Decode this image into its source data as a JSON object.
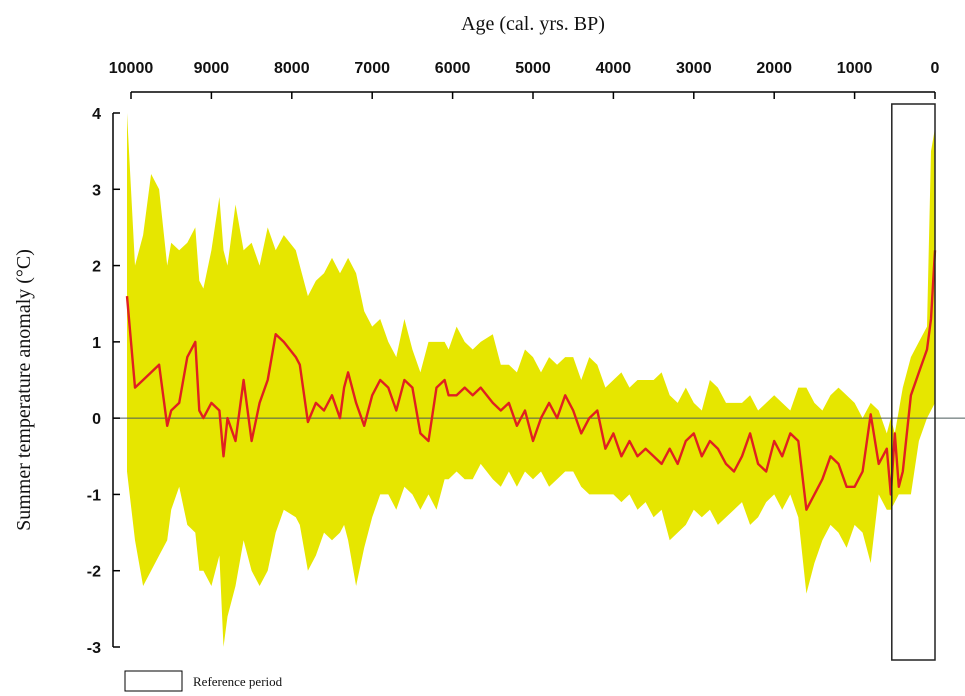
{
  "chart_data": {
    "type": "area",
    "xlabel": "Age (cal. yrs. BP)",
    "ylabel": "Summer temperature anomaly (°C)",
    "xlim": [
      10000,
      0
    ],
    "ylim": [
      -3,
      4
    ],
    "x_axis_position": "top",
    "x_reversed": true,
    "x_ticks": [
      10000,
      9000,
      8000,
      7000,
      6000,
      5000,
      4000,
      3000,
      2000,
      1000,
      0
    ],
    "y_ticks": [
      4,
      3,
      2,
      1,
      0,
      -1,
      -2,
      -3
    ],
    "zero_line": true,
    "grid": false,
    "colors": {
      "band": "#e6e600",
      "line": "#e02020",
      "axis": "#000000"
    },
    "series": [
      {
        "type": "line",
        "x": [
          10050,
          9950,
          9850,
          9750,
          9650,
          9550,
          9500,
          9400,
          9300,
          9200,
          9150,
          9100,
          9000,
          8900,
          8850,
          8800,
          8700,
          8600,
          8500,
          8400,
          8300,
          8200,
          8100,
          7950,
          7900,
          7800,
          7700,
          7600,
          7500,
          7400,
          7350,
          7300,
          7200,
          7100,
          7000,
          6900,
          6800,
          6700,
          6600,
          6500,
          6400,
          6300,
          6200,
          6100,
          6050,
          5950,
          5850,
          5750,
          5650,
          5500,
          5400,
          5300,
          5200,
          5100,
          5000,
          4900,
          4800,
          4700,
          4600,
          4500,
          4400,
          4300,
          4200,
          4100,
          4000,
          3900,
          3800,
          3700,
          3600,
          3500,
          3400,
          3300,
          3200,
          3100,
          3000,
          2900,
          2800,
          2700,
          2600,
          2500,
          2400,
          2300,
          2200,
          2100,
          2000,
          1900,
          1800,
          1700,
          1600,
          1500,
          1400,
          1300,
          1200,
          1100,
          1000,
          900,
          800,
          700,
          600,
          550,
          500,
          450,
          400,
          300,
          200,
          100,
          50,
          0
        ],
        "y": [
          1.6,
          0.4,
          0.5,
          0.6,
          0.7,
          -0.1,
          0.1,
          0.2,
          0.8,
          1.0,
          0.1,
          0.0,
          0.2,
          0.1,
          -0.5,
          0.0,
          -0.3,
          0.5,
          -0.3,
          0.2,
          0.5,
          1.1,
          1.0,
          0.8,
          0.7,
          -0.05,
          0.2,
          0.1,
          0.3,
          0.0,
          0.4,
          0.6,
          0.2,
          -0.1,
          0.3,
          0.5,
          0.4,
          0.1,
          0.5,
          0.4,
          -0.2,
          -0.3,
          0.4,
          0.5,
          0.3,
          0.3,
          0.4,
          0.3,
          0.4,
          0.2,
          0.1,
          0.2,
          -0.1,
          0.1,
          -0.3,
          0.0,
          0.2,
          0.0,
          0.3,
          0.1,
          -0.2,
          0.0,
          0.1,
          -0.4,
          -0.2,
          -0.5,
          -0.3,
          -0.5,
          -0.4,
          -0.5,
          -0.6,
          -0.4,
          -0.6,
          -0.3,
          -0.2,
          -0.5,
          -0.3,
          -0.4,
          -0.6,
          -0.7,
          -0.5,
          -0.2,
          -0.6,
          -0.7,
          -0.3,
          -0.5,
          -0.2,
          -0.3,
          -1.2,
          -1.0,
          -0.8,
          -0.5,
          -0.6,
          -0.9,
          -0.9,
          -0.7,
          0.05,
          -0.6,
          -0.4,
          -1.0,
          -0.2,
          -0.9,
          -0.7,
          0.3,
          0.6,
          0.9,
          1.3,
          2.2
        ]
      },
      {
        "type": "band",
        "x": [
          10050,
          9950,
          9850,
          9750,
          9650,
          9550,
          9500,
          9400,
          9300,
          9200,
          9150,
          9100,
          9000,
          8900,
          8850,
          8800,
          8700,
          8600,
          8500,
          8400,
          8300,
          8200,
          8100,
          7950,
          7900,
          7800,
          7700,
          7600,
          7500,
          7400,
          7350,
          7300,
          7200,
          7100,
          7000,
          6900,
          6800,
          6700,
          6600,
          6500,
          6400,
          6300,
          6200,
          6100,
          6050,
          5950,
          5850,
          5750,
          5650,
          5500,
          5400,
          5300,
          5200,
          5100,
          5000,
          4900,
          4800,
          4700,
          4600,
          4500,
          4400,
          4300,
          4200,
          4100,
          4000,
          3900,
          3800,
          3700,
          3600,
          3500,
          3400,
          3300,
          3200,
          3100,
          3000,
          2900,
          2800,
          2700,
          2600,
          2500,
          2400,
          2300,
          2200,
          2100,
          2000,
          1900,
          1800,
          1700,
          1600,
          1500,
          1400,
          1300,
          1200,
          1100,
          1000,
          900,
          800,
          700,
          600,
          550,
          500,
          450,
          400,
          300,
          200,
          100,
          50,
          0
        ],
        "upper": [
          4.0,
          2.0,
          2.4,
          3.2,
          3.0,
          2.0,
          2.3,
          2.2,
          2.3,
          2.5,
          1.8,
          1.7,
          2.2,
          2.9,
          2.2,
          2.0,
          2.8,
          2.2,
          2.3,
          2.0,
          2.5,
          2.2,
          2.4,
          2.2,
          2.0,
          1.6,
          1.8,
          1.9,
          2.1,
          1.9,
          2.0,
          2.1,
          1.9,
          1.4,
          1.2,
          1.3,
          1.0,
          0.8,
          1.3,
          0.9,
          0.6,
          1.0,
          1.0,
          1.0,
          0.9,
          1.2,
          1.0,
          0.9,
          1.0,
          1.1,
          0.7,
          0.7,
          0.6,
          0.9,
          0.8,
          0.6,
          0.8,
          0.7,
          0.8,
          0.8,
          0.5,
          0.8,
          0.7,
          0.4,
          0.5,
          0.6,
          0.4,
          0.5,
          0.5,
          0.5,
          0.6,
          0.3,
          0.2,
          0.4,
          0.2,
          0.1,
          0.5,
          0.4,
          0.2,
          0.2,
          0.2,
          0.3,
          0.1,
          0.2,
          0.3,
          0.2,
          0.1,
          0.4,
          0.4,
          0.2,
          0.1,
          0.3,
          0.4,
          0.3,
          0.2,
          0.0,
          0.2,
          0.1,
          -0.2,
          0.0,
          -0.2,
          0.1,
          0.4,
          0.8,
          1.0,
          1.2,
          3.5,
          3.8
        ],
        "lower": [
          -0.7,
          -1.6,
          -2.2,
          -2.0,
          -1.8,
          -1.6,
          -1.2,
          -0.9,
          -1.4,
          -1.5,
          -2.0,
          -2.0,
          -2.2,
          -1.8,
          -3.0,
          -2.6,
          -2.2,
          -1.6,
          -2.0,
          -2.2,
          -2.0,
          -1.5,
          -1.2,
          -1.3,
          -1.4,
          -2.0,
          -1.8,
          -1.5,
          -1.6,
          -1.5,
          -1.4,
          -1.6,
          -2.2,
          -1.7,
          -1.3,
          -1.0,
          -1.0,
          -1.2,
          -0.9,
          -1.0,
          -1.2,
          -1.0,
          -1.2,
          -0.8,
          -0.8,
          -0.7,
          -0.8,
          -0.8,
          -0.6,
          -0.8,
          -0.9,
          -0.7,
          -0.9,
          -0.7,
          -0.8,
          -0.7,
          -0.9,
          -0.8,
          -0.7,
          -0.7,
          -0.9,
          -1.0,
          -1.0,
          -1.0,
          -1.0,
          -1.1,
          -1.0,
          -1.2,
          -1.1,
          -1.3,
          -1.2,
          -1.6,
          -1.5,
          -1.4,
          -1.2,
          -1.3,
          -1.2,
          -1.4,
          -1.3,
          -1.2,
          -1.1,
          -1.4,
          -1.3,
          -1.1,
          -1.0,
          -1.2,
          -1.0,
          -1.3,
          -2.3,
          -1.9,
          -1.6,
          -1.4,
          -1.5,
          -1.7,
          -1.4,
          -1.5,
          -1.9,
          -1.0,
          -1.2,
          -1.2,
          -1.1,
          -1.0,
          -1.0,
          -1.0,
          -0.3,
          0.0,
          0.1,
          0.2
        ]
      }
    ],
    "annotations": [
      {
        "type": "box",
        "label": "Reference period",
        "x_range": [
          500,
          0
        ]
      }
    ],
    "legend": {
      "position": "bottom-left",
      "entries": [
        "Reference period"
      ]
    }
  }
}
